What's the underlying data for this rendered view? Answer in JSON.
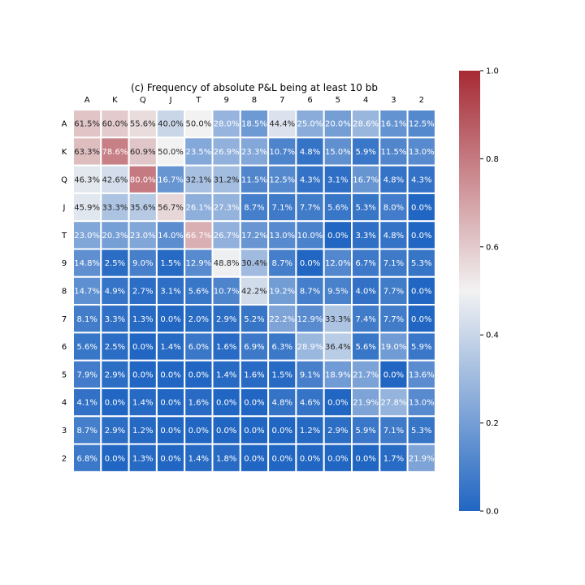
{
  "chart_data": {
    "type": "heatmap",
    "title": "(c) Frequency of absolute P&L being at least 10 bb",
    "x_categories": [
      "A",
      "K",
      "Q",
      "J",
      "T",
      "9",
      "8",
      "7",
      "6",
      "5",
      "4",
      "3",
      "2"
    ],
    "y_categories": [
      "A",
      "K",
      "Q",
      "J",
      "T",
      "9",
      "8",
      "7",
      "6",
      "5",
      "4",
      "3",
      "2"
    ],
    "x_tick_position": "top",
    "values": [
      [
        0.615,
        0.6,
        0.556,
        0.4,
        0.5,
        0.28,
        0.185,
        0.444,
        0.25,
        0.2,
        0.286,
        0.161,
        0.125
      ],
      [
        0.633,
        0.786,
        0.609,
        0.5,
        0.235,
        0.269,
        0.233,
        0.107,
        0.048,
        0.15,
        0.059,
        0.115,
        0.13
      ],
      [
        0.463,
        0.426,
        0.8,
        0.167,
        0.321,
        0.312,
        0.115,
        0.125,
        0.043,
        0.031,
        0.167,
        0.048,
        0.043
      ],
      [
        0.459,
        0.333,
        0.356,
        0.567,
        0.261,
        0.273,
        0.087,
        0.071,
        0.077,
        0.056,
        0.053,
        0.08,
        0.0
      ],
      [
        0.23,
        0.203,
        0.23,
        0.14,
        0.667,
        0.267,
        0.172,
        0.13,
        0.1,
        0.0,
        0.033,
        0.048,
        0.0
      ],
      [
        0.148,
        0.025,
        0.09,
        0.015,
        0.129,
        0.488,
        0.304,
        0.087,
        0.0,
        0.12,
        0.067,
        0.071,
        0.053
      ],
      [
        0.147,
        0.049,
        0.027,
        0.031,
        0.056,
        0.107,
        0.422,
        0.192,
        0.087,
        0.095,
        0.04,
        0.077,
        0.0
      ],
      [
        0.081,
        0.033,
        0.013,
        0.0,
        0.02,
        0.029,
        0.052,
        0.222,
        0.129,
        0.333,
        0.074,
        0.077,
        0.0
      ],
      [
        0.056,
        0.025,
        0.0,
        0.014,
        0.06,
        0.016,
        0.069,
        0.063,
        0.289,
        0.364,
        0.056,
        0.19,
        0.059
      ],
      [
        0.079,
        0.029,
        0.0,
        0.0,
        0.0,
        0.014,
        0.016,
        0.015,
        0.091,
        0.189,
        0.217,
        0.0,
        0.136
      ],
      [
        0.041,
        0.0,
        0.014,
        0.0,
        0.016,
        0.0,
        0.0,
        0.048,
        0.046,
        0.0,
        0.219,
        0.278,
        0.13
      ],
      [
        0.087,
        0.029,
        0.012,
        0.0,
        0.0,
        0.0,
        0.0,
        0.0,
        0.012,
        0.029,
        0.059,
        0.071,
        0.053
      ],
      [
        0.068,
        0.0,
        0.013,
        0.0,
        0.014,
        0.018,
        0.0,
        0.0,
        0.0,
        0.0,
        0.0,
        0.017,
        0.219
      ]
    ],
    "labels": [
      [
        "61.5%",
        "60.0%",
        "55.6%",
        "40.0%",
        "50.0%",
        "28.0%",
        "18.5%",
        "44.4%",
        "25.0%",
        "20.0%",
        "28.6%",
        "16.1%",
        "12.5%"
      ],
      [
        "63.3%",
        "78.6%",
        "60.9%",
        "50.0%",
        "23.5%",
        "26.9%",
        "23.3%",
        "10.7%",
        "4.8%",
        "15.0%",
        "5.9%",
        "11.5%",
        "13.0%"
      ],
      [
        "46.3%",
        "42.6%",
        "80.0%",
        "16.7%",
        "32.1%",
        "31.2%",
        "11.5%",
        "12.5%",
        "4.3%",
        "3.1%",
        "16.7%",
        "4.8%",
        "4.3%"
      ],
      [
        "45.9%",
        "33.3%",
        "35.6%",
        "56.7%",
        "26.1%",
        "27.3%",
        "8.7%",
        "7.1%",
        "7.7%",
        "5.6%",
        "5.3%",
        "8.0%",
        "0.0%"
      ],
      [
        "23.0%",
        "20.3%",
        "23.0%",
        "14.0%",
        "66.7%",
        "26.7%",
        "17.2%",
        "13.0%",
        "10.0%",
        "0.0%",
        "3.3%",
        "4.8%",
        "0.0%"
      ],
      [
        "14.8%",
        "2.5%",
        "9.0%",
        "1.5%",
        "12.9%",
        "48.8%",
        "30.4%",
        "8.7%",
        "0.0%",
        "12.0%",
        "6.7%",
        "7.1%",
        "5.3%"
      ],
      [
        "14.7%",
        "4.9%",
        "2.7%",
        "3.1%",
        "5.6%",
        "10.7%",
        "42.2%",
        "19.2%",
        "8.7%",
        "9.5%",
        "4.0%",
        "7.7%",
        "0.0%"
      ],
      [
        "8.1%",
        "3.3%",
        "1.3%",
        "0.0%",
        "2.0%",
        "2.9%",
        "5.2%",
        "22.2%",
        "12.9%",
        "33.3%",
        "7.4%",
        "7.7%",
        "0.0%"
      ],
      [
        "5.6%",
        "2.5%",
        "0.0%",
        "1.4%",
        "6.0%",
        "1.6%",
        "6.9%",
        "6.3%",
        "28.9%",
        "36.4%",
        "5.6%",
        "19.0%",
        "5.9%"
      ],
      [
        "7.9%",
        "2.9%",
        "0.0%",
        "0.0%",
        "0.0%",
        "1.4%",
        "1.6%",
        "1.5%",
        "9.1%",
        "18.9%",
        "21.7%",
        "0.0%",
        "13.6%"
      ],
      [
        "4.1%",
        "0.0%",
        "1.4%",
        "0.0%",
        "1.6%",
        "0.0%",
        "0.0%",
        "4.8%",
        "4.6%",
        "0.0%",
        "21.9%",
        "27.8%",
        "13.0%"
      ],
      [
        "8.7%",
        "2.9%",
        "1.2%",
        "0.0%",
        "0.0%",
        "0.0%",
        "0.0%",
        "0.0%",
        "1.2%",
        "2.9%",
        "5.9%",
        "7.1%",
        "5.3%"
      ],
      [
        "6.8%",
        "0.0%",
        "1.3%",
        "0.0%",
        "1.4%",
        "1.8%",
        "0.0%",
        "0.0%",
        "0.0%",
        "0.0%",
        "0.0%",
        "1.7%",
        "21.9%"
      ]
    ],
    "colorbar": {
      "range": [
        0,
        1
      ],
      "ticks": [
        "0.0",
        "0.2",
        "0.4",
        "0.6",
        "0.8",
        "1.0"
      ],
      "colormap": [
        "#2166c2",
        "#f2f2f2",
        "#a62a34"
      ]
    },
    "grid": false,
    "cell_separator_color": "#ffffff"
  }
}
